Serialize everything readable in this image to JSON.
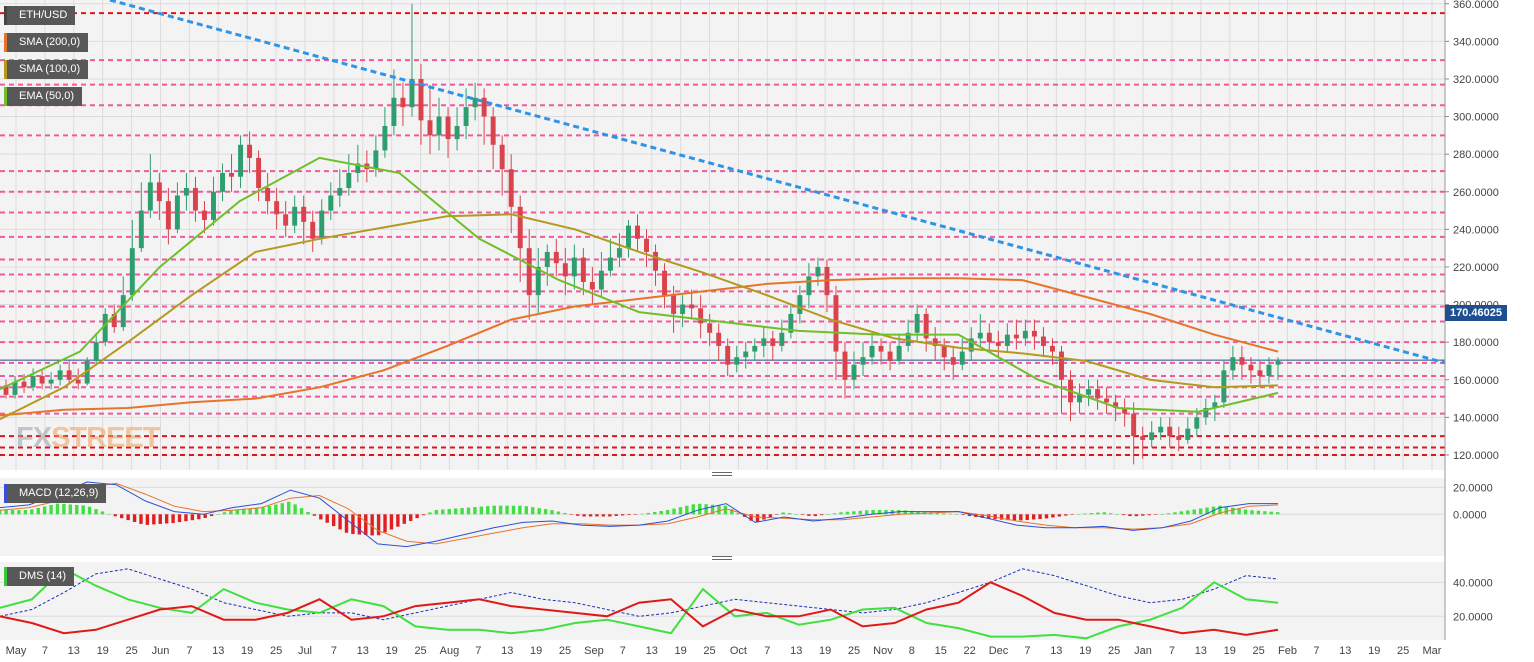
{
  "chart_data": [
    {
      "type": "candlestick",
      "symbol": "ETH/USD",
      "ylim": [
        112,
        362
      ],
      "yticks": [
        120,
        140,
        160,
        180,
        200,
        220,
        240,
        260,
        280,
        300,
        320,
        340,
        360
      ],
      "ytick_labels": [
        "120.0000",
        "140.0000",
        "160.0000",
        "180.0000",
        "200.0000",
        "220.0000",
        "240.0000",
        "260.0000",
        "280.0000",
        "300.0000",
        "320.0000",
        "340.0000",
        "360.0000"
      ],
      "xticks": [
        "May",
        "7",
        "13",
        "19",
        "25",
        "Jun",
        "7",
        "13",
        "19",
        "25",
        "Jul",
        "7",
        "13",
        "19",
        "25",
        "Aug",
        "7",
        "13",
        "19",
        "25",
        "Sep",
        "7",
        "13",
        "19",
        "25",
        "Oct",
        "7",
        "13",
        "19",
        "25",
        "Nov",
        "8",
        "15",
        "22",
        "Dec",
        "7",
        "13",
        "19",
        "25",
        "Jan",
        "7",
        "13",
        "19",
        "25",
        "Feb",
        "7",
        "13",
        "19",
        "25",
        "Mar"
      ],
      "last_price_label": "170.46025",
      "indicators": [
        {
          "label": "SMA (200,0)",
          "color": "#e8742a",
          "values": [
            141,
            144,
            145,
            148,
            150,
            156,
            165,
            178,
            192,
            199,
            203,
            207,
            211,
            213,
            214,
            214,
            213,
            204,
            195,
            184,
            175
          ]
        },
        {
          "label": "SMA (100,0)",
          "color": "#b39a1e",
          "values": [
            139,
            156,
            180,
            205,
            228,
            235,
            241,
            247,
            248,
            240,
            228,
            217,
            205,
            192,
            182,
            177,
            174,
            170,
            160,
            156,
            157
          ]
        },
        {
          "label": "EMA (50,0)",
          "color": "#6fbf2a",
          "values": [
            155,
            175,
            220,
            255,
            278,
            270,
            235,
            213,
            196,
            191,
            186,
            184,
            184,
            160,
            145,
            143,
            153
          ]
        }
      ],
      "horizontal_levels_red": [
        120,
        124,
        130,
        355
      ],
      "horizontal_levels_pink": [
        142,
        151,
        156,
        162,
        169,
        180,
        191,
        199,
        207,
        216,
        224,
        236,
        249,
        260,
        271,
        290,
        306,
        317,
        330
      ],
      "trendline_from": 372,
      "trendline_to": 169,
      "candles": [
        [
          157,
          152,
          160,
          150
        ],
        [
          152,
          159,
          162,
          150
        ],
        [
          159,
          156,
          163,
          153
        ],
        [
          156,
          162,
          166,
          154
        ],
        [
          162,
          158,
          165,
          155
        ],
        [
          158,
          160,
          164,
          155
        ],
        [
          160,
          165,
          168,
          157
        ],
        [
          165,
          160,
          170,
          158
        ],
        [
          160,
          158,
          166,
          155
        ],
        [
          158,
          170,
          172,
          157
        ],
        [
          170,
          180,
          185,
          168
        ],
        [
          180,
          195,
          198,
          178
        ],
        [
          195,
          188,
          200,
          185
        ],
        [
          188,
          205,
          215,
          186
        ],
        [
          205,
          230,
          245,
          202
        ],
        [
          230,
          250,
          265,
          228
        ],
        [
          250,
          265,
          280,
          246
        ],
        [
          265,
          255,
          270,
          245
        ],
        [
          255,
          240,
          262,
          232
        ],
        [
          240,
          258,
          265,
          238
        ],
        [
          258,
          262,
          270,
          250
        ],
        [
          262,
          250,
          268,
          244
        ],
        [
          250,
          245,
          255,
          238
        ],
        [
          245,
          260,
          268,
          242
        ],
        [
          260,
          270,
          275,
          255
        ],
        [
          270,
          268,
          280,
          260
        ],
        [
          268,
          285,
          290,
          262
        ],
        [
          285,
          278,
          292,
          270
        ],
        [
          278,
          262,
          282,
          255
        ],
        [
          262,
          255,
          270,
          248
        ],
        [
          255,
          248,
          262,
          240
        ],
        [
          248,
          242,
          255,
          236
        ],
        [
          242,
          252,
          258,
          238
        ],
        [
          252,
          244,
          258,
          232
        ],
        [
          244,
          235,
          250,
          228
        ],
        [
          235,
          250,
          256,
          232
        ],
        [
          250,
          258,
          265,
          245
        ],
        [
          258,
          262,
          272,
          252
        ],
        [
          262,
          270,
          280,
          258
        ],
        [
          270,
          275,
          285,
          265
        ],
        [
          275,
          272,
          282,
          265
        ],
        [
          272,
          282,
          290,
          268
        ],
        [
          282,
          295,
          305,
          278
        ],
        [
          295,
          310,
          325,
          290
        ],
        [
          310,
          305,
          318,
          295
        ],
        [
          305,
          320,
          360,
          300
        ],
        [
          320,
          298,
          328,
          285
        ],
        [
          298,
          290,
          315,
          280
        ],
        [
          290,
          300,
          310,
          282
        ],
        [
          300,
          288,
          305,
          278
        ],
        [
          288,
          295,
          305,
          282
        ],
        [
          295,
          305,
          315,
          288
        ],
        [
          305,
          310,
          318,
          298
        ],
        [
          310,
          300,
          315,
          285
        ],
        [
          300,
          285,
          305,
          272
        ],
        [
          285,
          272,
          290,
          258
        ],
        [
          272,
          252,
          280,
          238
        ],
        [
          252,
          230,
          258,
          212
        ],
        [
          230,
          205,
          240,
          192
        ],
        [
          205,
          220,
          230,
          195
        ],
        [
          220,
          228,
          232,
          210
        ],
        [
          228,
          222,
          235,
          215
        ],
        [
          222,
          215,
          230,
          205
        ],
        [
          215,
          225,
          232,
          208
        ],
        [
          225,
          212,
          230,
          205
        ],
        [
          212,
          208,
          220,
          200
        ],
        [
          208,
          218,
          228,
          204
        ],
        [
          218,
          225,
          235,
          215
        ],
        [
          225,
          230,
          238,
          220
        ],
        [
          230,
          242,
          245,
          225
        ],
        [
          242,
          235,
          248,
          228
        ],
        [
          235,
          228,
          240,
          220
        ],
        [
          228,
          218,
          232,
          210
        ],
        [
          218,
          205,
          222,
          198
        ],
        [
          205,
          195,
          210,
          185
        ],
        [
          195,
          200,
          205,
          188
        ],
        [
          200,
          198,
          208,
          192
        ],
        [
          198,
          190,
          205,
          182
        ],
        [
          190,
          185,
          195,
          178
        ],
        [
          185,
          178,
          190,
          170
        ],
        [
          178,
          168,
          182,
          162
        ],
        [
          168,
          172,
          178,
          164
        ],
        [
          172,
          175,
          180,
          166
        ],
        [
          175,
          178,
          182,
          170
        ],
        [
          178,
          182,
          188,
          172
        ],
        [
          182,
          178,
          186,
          170
        ],
        [
          178,
          185,
          192,
          175
        ],
        [
          185,
          195,
          200,
          182
        ],
        [
          195,
          205,
          210,
          190
        ],
        [
          205,
          215,
          222,
          198
        ],
        [
          215,
          220,
          225,
          210
        ],
        [
          220,
          205,
          224,
          196
        ],
        [
          205,
          175,
          210,
          160
        ],
        [
          175,
          160,
          180,
          150
        ],
        [
          160,
          168,
          175,
          155
        ],
        [
          168,
          172,
          180,
          162
        ],
        [
          172,
          178,
          185,
          168
        ],
        [
          178,
          175,
          182,
          168
        ],
        [
          175,
          170,
          180,
          165
        ],
        [
          170,
          178,
          184,
          168
        ],
        [
          178,
          185,
          192,
          175
        ],
        [
          185,
          195,
          200,
          180
        ],
        [
          195,
          182,
          198,
          175
        ],
        [
          182,
          178,
          188,
          170
        ],
        [
          178,
          172,
          182,
          165
        ],
        [
          172,
          168,
          178,
          160
        ],
        [
          168,
          175,
          182,
          165
        ],
        [
          175,
          182,
          188,
          170
        ],
        [
          182,
          185,
          195,
          178
        ],
        [
          185,
          180,
          190,
          175
        ],
        [
          180,
          178,
          186,
          172
        ],
        [
          178,
          184,
          190,
          175
        ],
        [
          184,
          182,
          192,
          176
        ],
        [
          182,
          186,
          192,
          178
        ],
        [
          186,
          183,
          192,
          176
        ],
        [
          183,
          178,
          188,
          172
        ],
        [
          178,
          175,
          182,
          168
        ],
        [
          175,
          160,
          178,
          142
        ],
        [
          160,
          148,
          165,
          138
        ],
        [
          148,
          152,
          158,
          142
        ],
        [
          152,
          155,
          160,
          146
        ],
        [
          155,
          150,
          160,
          144
        ],
        [
          150,
          148,
          156,
          142
        ],
        [
          148,
          145,
          152,
          138
        ],
        [
          145,
          142,
          150,
          135
        ],
        [
          142,
          130,
          148,
          115
        ],
        [
          130,
          128,
          135,
          118
        ],
        [
          128,
          132,
          138,
          124
        ],
        [
          132,
          135,
          140,
          128
        ],
        [
          135,
          130,
          140,
          124
        ],
        [
          130,
          128,
          135,
          122
        ],
        [
          128,
          134,
          140,
          126
        ],
        [
          134,
          140,
          145,
          130
        ],
        [
          140,
          145,
          150,
          136
        ],
        [
          145,
          148,
          152,
          138
        ],
        [
          148,
          165,
          170,
          145
        ],
        [
          165,
          172,
          178,
          160
        ],
        [
          172,
          168,
          178,
          160
        ],
        [
          168,
          165,
          172,
          158
        ],
        [
          165,
          162,
          170,
          156
        ],
        [
          162,
          168,
          172,
          158
        ],
        [
          168,
          170,
          172,
          160
        ]
      ]
    },
    {
      "type": "macd",
      "label": "MACD (12,26,9)",
      "ylim": [
        -31,
        27
      ],
      "yticks": [
        0,
        20
      ],
      "ytick_labels": [
        "0.0000",
        "20.0000"
      ],
      "macd": [
        5,
        7,
        15,
        24,
        22,
        10,
        2,
        0,
        5,
        8,
        18,
        12,
        -5,
        -22,
        -24,
        -20,
        -15,
        -10,
        -6,
        -5,
        -8,
        -9,
        -8,
        -5,
        3,
        8,
        -6,
        -2,
        -5,
        -3,
        0,
        2,
        2,
        2,
        -3,
        -8,
        -10,
        -10,
        -9,
        -12,
        -10,
        -5,
        5,
        8,
        8
      ],
      "signal": [
        3,
        5,
        10,
        20,
        23,
        15,
        6,
        2,
        3,
        5,
        12,
        14,
        4,
        -12,
        -20,
        -22,
        -18,
        -14,
        -10,
        -7,
        -7,
        -8,
        -8,
        -7,
        -2,
        4,
        -2,
        -3,
        -4,
        -4,
        -2,
        0,
        1,
        2,
        -1,
        -5,
        -8,
        -10,
        -10,
        -11,
        -10,
        -7,
        1,
        6,
        7
      ]
    },
    {
      "type": "dms",
      "label": "DMS (14)",
      "ylim": [
        6,
        52
      ],
      "yticks": [
        20,
        40
      ],
      "ytick_labels": [
        "20.0000",
        "40.0000"
      ],
      "dmi_plus": [
        25,
        30,
        48,
        38,
        30,
        25,
        22,
        36,
        28,
        24,
        22,
        30,
        26,
        14,
        12,
        12,
        10,
        12,
        16,
        18,
        14,
        10,
        36,
        20,
        22,
        15,
        18,
        24,
        25,
        16,
        13,
        8,
        8,
        9,
        7,
        14,
        18,
        25,
        40,
        30,
        28
      ],
      "dmi_minus": [
        20,
        16,
        10,
        12,
        18,
        24,
        26,
        18,
        18,
        22,
        30,
        18,
        20,
        26,
        28,
        30,
        26,
        24,
        22,
        20,
        28,
        30,
        14,
        24,
        20,
        20,
        24,
        14,
        16,
        24,
        28,
        40,
        32,
        22,
        18,
        18,
        14,
        10,
        12,
        9,
        12
      ],
      "adx": [
        20,
        24,
        34,
        45,
        48,
        42,
        36,
        28,
        24,
        20,
        22,
        22,
        18,
        22,
        26,
        30,
        34,
        30,
        28,
        24,
        20,
        22,
        26,
        30,
        28,
        26,
        24,
        22,
        24,
        28,
        34,
        40,
        48,
        44,
        38,
        32,
        28,
        30,
        36,
        44,
        42
      ]
    }
  ],
  "labels": {
    "symbol": "ETH/USD",
    "sma200": "SMA (200,0)",
    "sma100": "SMA (100,0)",
    "ema50": "EMA (50,0)",
    "macd": "MACD (12,26,9)",
    "dms": "DMS (14)",
    "watermark_fx": "FX",
    "watermark_street": "STREET",
    "last_price": "170.46025"
  },
  "colors": {
    "up_candle": "#2e9e6e",
    "down_candle": "#d9434c",
    "hist_pos": "#3fe03f",
    "hist_neg": "#e02020",
    "macd_line": "#2c4fd6",
    "signal_line": "#e8742a",
    "dmi_plus": "#3fe03f",
    "dmi_minus": "#e01818",
    "adx": "#1c2fb8",
    "trendline": "#2f93e6",
    "level_red": "#e0141b",
    "level_pink": "#f0599d",
    "price_line": "#1d4f91"
  }
}
